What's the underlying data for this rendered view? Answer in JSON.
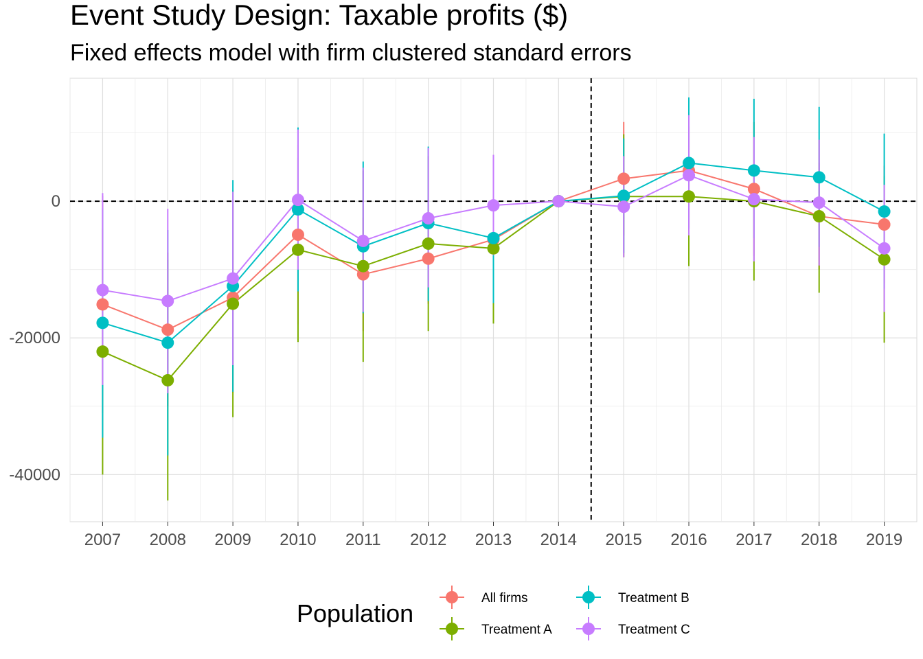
{
  "chart_data": {
    "type": "line",
    "title": "Event Study Design: Taxable profits  ($)",
    "subtitle": "Fixed effects model with firm clustered standard errors",
    "xlabel": "",
    "ylabel": "",
    "x": [
      2007,
      2008,
      2009,
      2010,
      2011,
      2012,
      2013,
      2014,
      2015,
      2016,
      2017,
      2018,
      2019
    ],
    "xlim": [
      2006.5,
      2019.5
    ],
    "ylim": [
      -46900,
      18000
    ],
    "yticks": [
      0,
      -20000,
      -40000
    ],
    "ytick_labels": [
      "0",
      "-20000",
      "-40000"
    ],
    "reference_lines": {
      "horizontal_y": 0,
      "vertical_x": 2014.5,
      "style": "dashed"
    },
    "grid": true,
    "legend": {
      "title": "Population",
      "placement": "bottom"
    },
    "series": [
      {
        "name": "All firms",
        "color": "#F8766D",
        "values": [
          -15100,
          -18800,
          -14100,
          -4900,
          -10700,
          -8400,
          -5600,
          0,
          3300,
          4500,
          1800,
          -2200,
          -3400
        ],
        "ci_low": [
          -31000,
          -30000,
          -28000,
          -18000,
          -19000,
          -15000,
          -10500,
          0,
          -5000,
          -4000,
          -8000,
          -10000,
          -12000
        ],
        "ci_high": [
          800,
          -7500,
          -200,
          8200,
          -2400,
          -1800,
          -700,
          0,
          11600,
          13000,
          11600,
          5600,
          5200
        ]
      },
      {
        "name": "Treatment A",
        "color": "#7CAE00",
        "values": [
          -22000,
          -26200,
          -15000,
          -7100,
          -9500,
          -6200,
          -6900,
          0,
          700,
          700,
          0,
          -2200,
          -8500
        ],
        "ci_low": [
          -40000,
          -43800,
          -31600,
          -20600,
          -23500,
          -19000,
          -17900,
          0,
          -8200,
          -9500,
          -11600,
          -13400,
          -20700
        ],
        "ci_high": [
          -4000,
          -8600,
          1600,
          6400,
          4500,
          6600,
          4100,
          0,
          9800,
          10900,
          11600,
          9000,
          3700
        ]
      },
      {
        "name": "Treatment B",
        "color": "#00BFC4",
        "values": [
          -17800,
          -20700,
          -12400,
          -1200,
          -6600,
          -3200,
          -5400,
          0,
          800,
          5600,
          4500,
          3500,
          -1500
        ],
        "ci_low": [
          -34600,
          -37200,
          -27900,
          -13200,
          -16400,
          -14600,
          -14900,
          0,
          -7600,
          -4000,
          -5400,
          -6700,
          -12800
        ],
        "ci_high": [
          -1000,
          -4200,
          3100,
          10800,
          5800,
          8000,
          4100,
          0,
          9200,
          15200,
          15000,
          13800,
          9900
        ]
      },
      {
        "name": "Treatment C",
        "color": "#C77CFF",
        "values": [
          -13000,
          -14600,
          -11300,
          200,
          -5800,
          -2500,
          -600,
          0,
          -800,
          3800,
          300,
          -200,
          -6900
        ],
        "ci_low": [
          -26900,
          -28100,
          -24000,
          -10000,
          -16200,
          -12600,
          -7900,
          0,
          -8200,
          -5000,
          -8800,
          -9400,
          -16200
        ],
        "ci_high": [
          1200,
          -1100,
          1400,
          10500,
          4900,
          7800,
          6800,
          0,
          6600,
          12600,
          9400,
          9000,
          2400
        ]
      }
    ]
  }
}
